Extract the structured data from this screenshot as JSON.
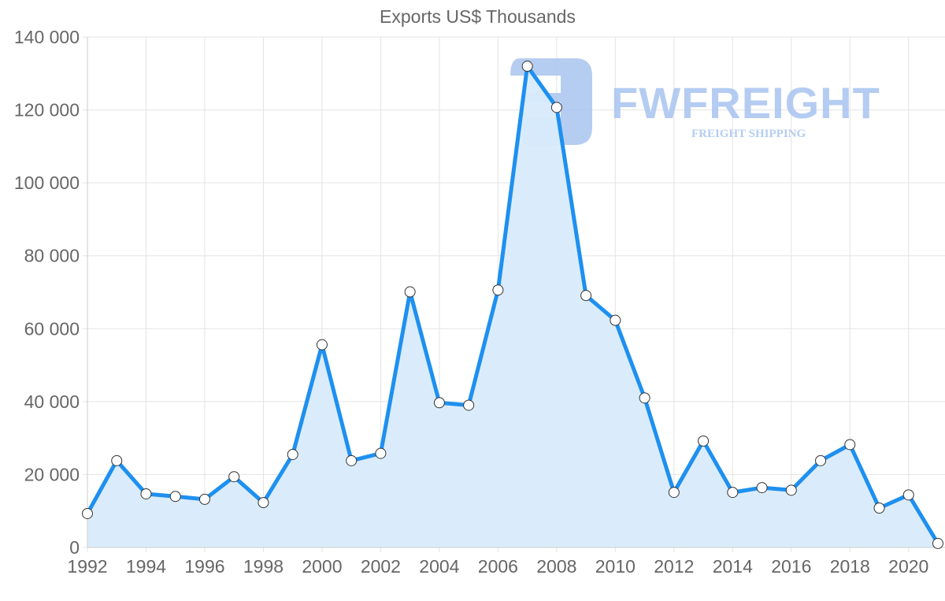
{
  "chart_data": {
    "type": "line",
    "title": "Exports US$ Thousands",
    "xlabel": "",
    "ylabel": "",
    "x": [
      1992,
      1993,
      1994,
      1995,
      1996,
      1997,
      1998,
      1999,
      2000,
      2001,
      2002,
      2003,
      2004,
      2005,
      2006,
      2007,
      2008,
      2009,
      2010,
      2011,
      2012,
      2013,
      2014,
      2015,
      2016,
      2017,
      2018,
      2019,
      2020,
      2021
    ],
    "series": [
      {
        "name": "Exports US$ Thousands",
        "values": [
          9300,
          23800,
          14700,
          14000,
          13200,
          19400,
          12300,
          25500,
          55600,
          23800,
          25800,
          70100,
          39700,
          39000,
          70600,
          132000,
          120700,
          69100,
          62300,
          41000,
          15100,
          29200,
          15100,
          16400,
          15700,
          23800,
          28200,
          10800,
          14400,
          1100
        ]
      }
    ],
    "ylim": [
      0,
      140000
    ],
    "xlim": [
      1992,
      2021
    ],
    "y_ticks": [
      0,
      20000,
      40000,
      60000,
      80000,
      100000,
      120000,
      140000
    ],
    "y_tick_labels": [
      "0",
      "20 000",
      "40 000",
      "60 000",
      "80 000",
      "100 000",
      "120 000",
      "140 000"
    ],
    "x_ticks": [
      1992,
      1994,
      1996,
      1998,
      2000,
      2002,
      2004,
      2006,
      2008,
      2010,
      2012,
      2014,
      2016,
      2018,
      2020
    ],
    "x_tick_labels": [
      "1992",
      "1994",
      "1996",
      "1998",
      "2000",
      "2002",
      "2004",
      "2006",
      "2008",
      "2010",
      "2012",
      "2014",
      "2016",
      "2018",
      "2020"
    ],
    "grid": true,
    "filled_area": true,
    "legend": null,
    "colors": {
      "line": "#1e90f0",
      "fill": "#d8ebfb",
      "grid": "#e3e3e3",
      "point_fill": "#ffffff",
      "point_stroke": "#333333"
    }
  },
  "watermark": {
    "brand": "FWFREIGHT",
    "tagline": "FREIGHT SHIPPING"
  }
}
